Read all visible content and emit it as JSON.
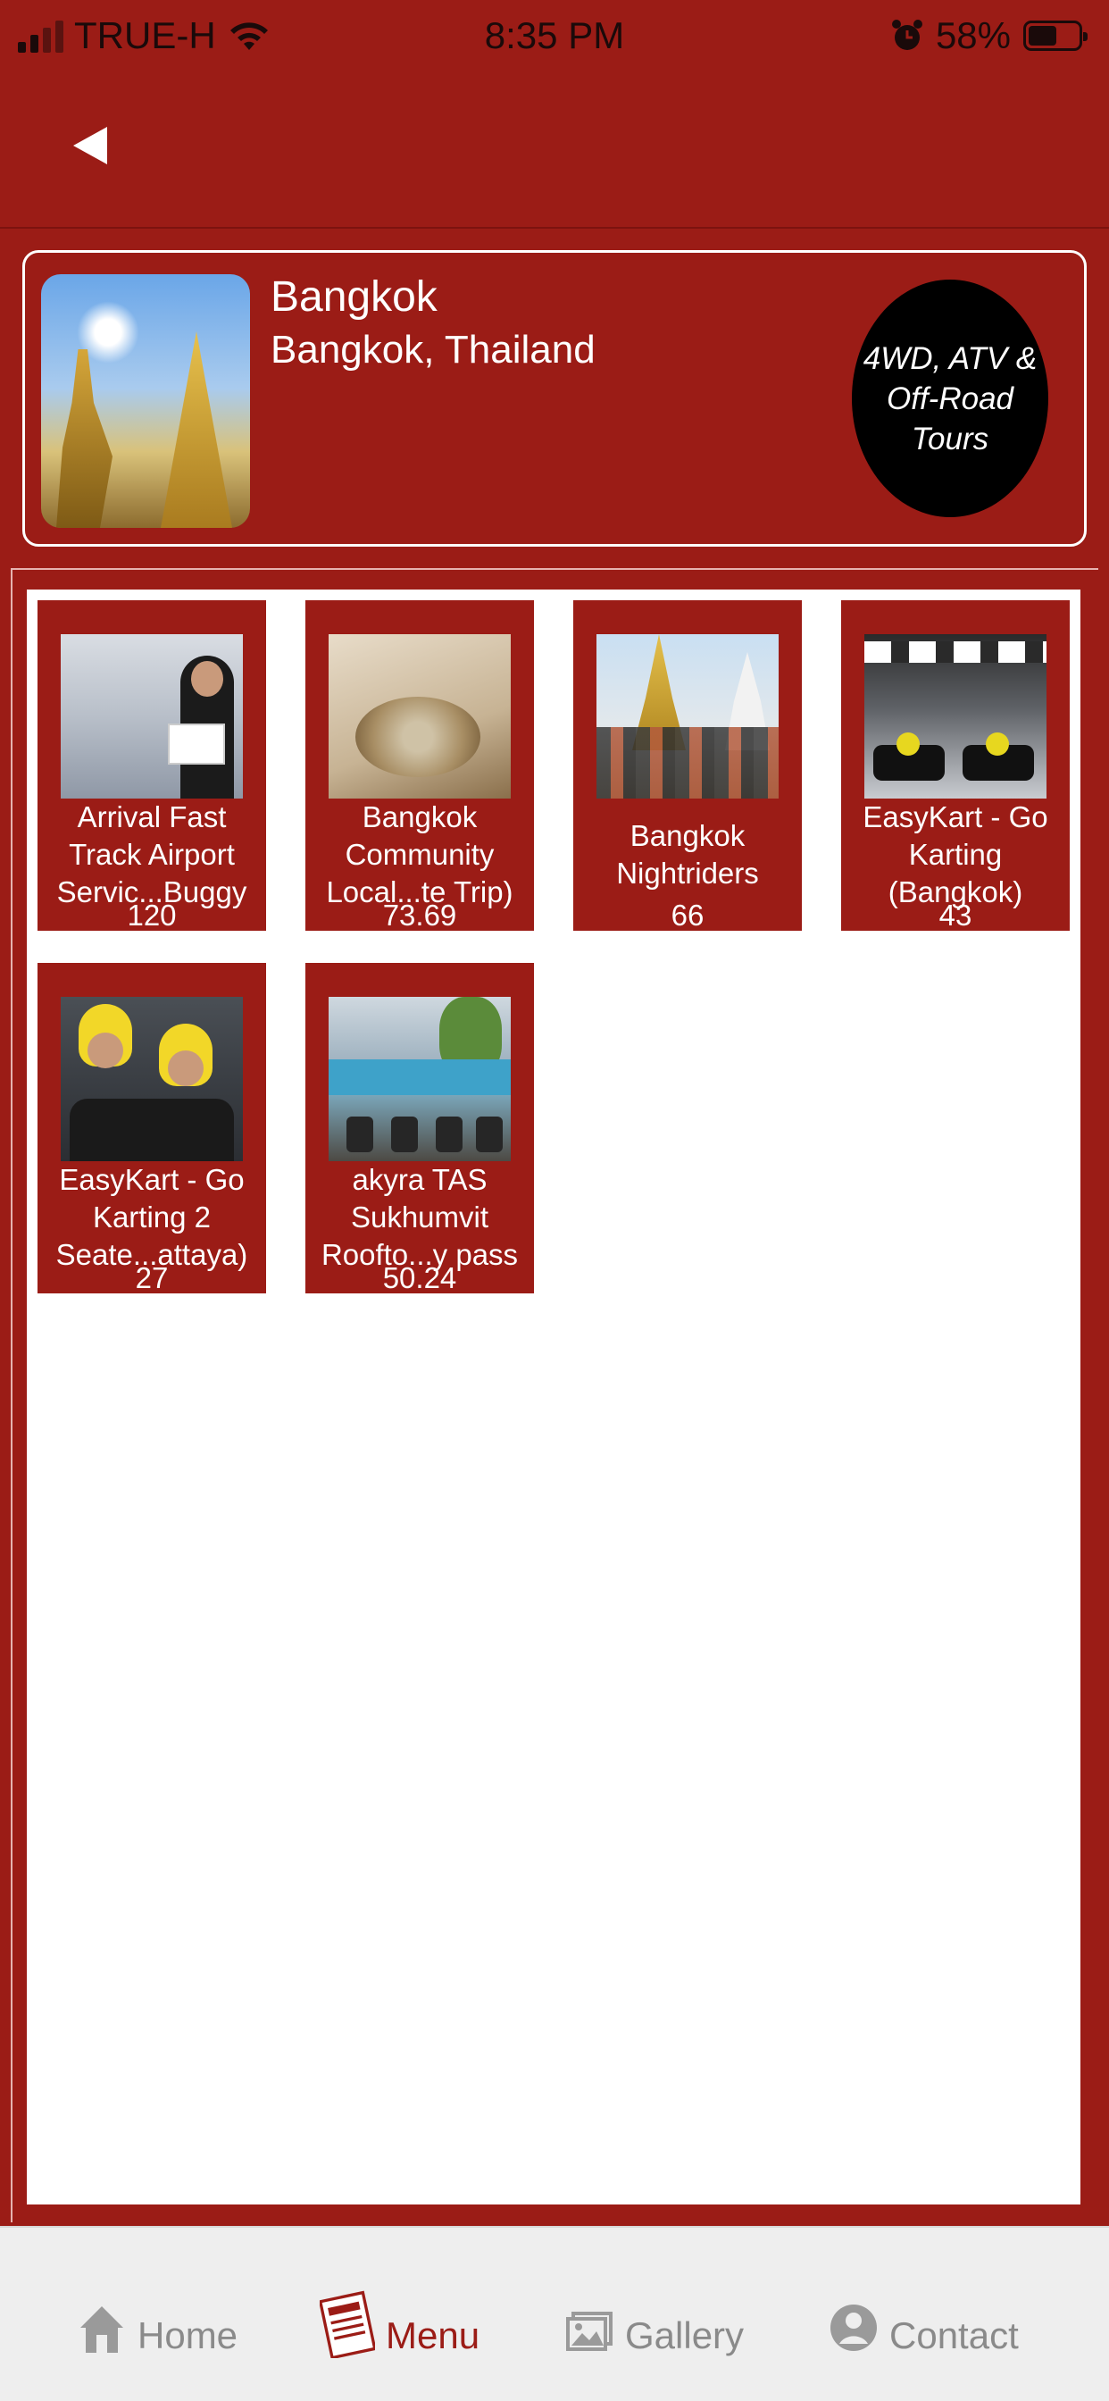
{
  "status_bar": {
    "carrier": "TRUE-H",
    "time": "8:35 PM",
    "battery": "58%",
    "battery_level": 0.58
  },
  "location": {
    "title": "Bangkok",
    "subtitle": "Bangkok, Thailand",
    "category": "4WD, ATV & Off-Road Tours"
  },
  "tours": [
    {
      "name": "Arrival Fast\nTrack Airport\nServic...Buggy",
      "price": "120",
      "image": "airport-hostess-photo"
    },
    {
      "name": "Bangkok\nCommunity\nLocal...te Trip)",
      "price": "73.69",
      "image": "offering-bowls-photo"
    },
    {
      "name": "Bangkok\nNightriders",
      "price": "66",
      "image": "bike-tour-group-photo"
    },
    {
      "name": "EasyKart - Go\nKarting\n(Bangkok)",
      "price": "43",
      "image": "go-kart-track-photo"
    },
    {
      "name": "EasyKart - Go\nKarting 2\nSeate...attaya)",
      "price": "27",
      "image": "go-kart-riders-photo"
    },
    {
      "name": "akyra TAS\nSukhumvit\nRoofto...y pass",
      "price": "50.24",
      "image": "rooftop-pool-photo"
    }
  ],
  "tabs": [
    {
      "label": "Home",
      "icon": "home-icon",
      "active": false
    },
    {
      "label": "Menu",
      "icon": "menu-icon",
      "active": true
    },
    {
      "label": "Gallery",
      "icon": "gallery-icon",
      "active": false
    },
    {
      "label": "Contact",
      "icon": "contact-icon",
      "active": false
    }
  ],
  "colors": {
    "brand_red": "#9b1c16",
    "badge_black": "#000000",
    "tab_inactive": "#8a8a8a"
  }
}
